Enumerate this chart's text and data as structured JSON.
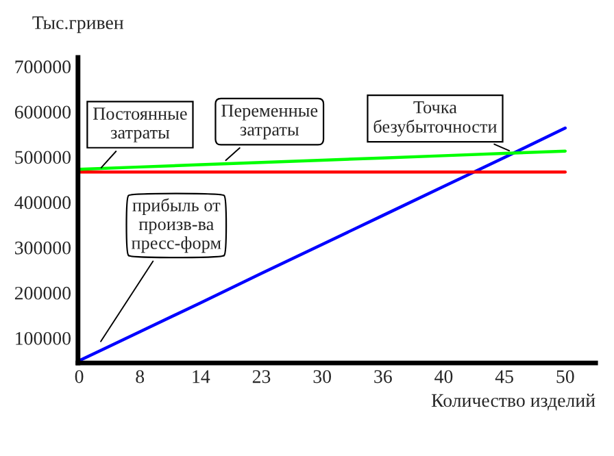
{
  "chart_data": {
    "type": "line",
    "ylabel": "Тыс.гривен",
    "xlabel": "Количество изделий",
    "categories": [
      "0",
      "8",
      "14",
      "23",
      "30",
      "36",
      "40",
      "45",
      "50"
    ],
    "series": [
      {
        "color": "#0000ff",
        "values": [
          50000,
          114000,
          178000,
          243000,
          307000,
          371000,
          435000,
          499000,
          564000
        ]
      },
      {
        "color": "#ff0000",
        "values": [
          467000,
          467000,
          467000,
          467000,
          467000,
          467000,
          467000,
          467000,
          467000
        ]
      },
      {
        "color": "#00ff00",
        "values": [
          473000,
          478000,
          483000,
          488000,
          493000,
          498000,
          503000,
          508000,
          513000
        ]
      }
    ],
    "ylim": [
      45000,
      720000
    ],
    "yticks": [
      100000,
      200000,
      300000,
      400000,
      500000,
      600000,
      700000
    ],
    "annotations": [
      "Постоянные\nзатраты",
      "Переменные\nзатраты",
      "Точка\nбезубыточности",
      "прибыль от\nпроизв-ва\nпресс-форм"
    ],
    "grid": false,
    "legend": false,
    "marker": "none",
    "line_style": "solid"
  }
}
